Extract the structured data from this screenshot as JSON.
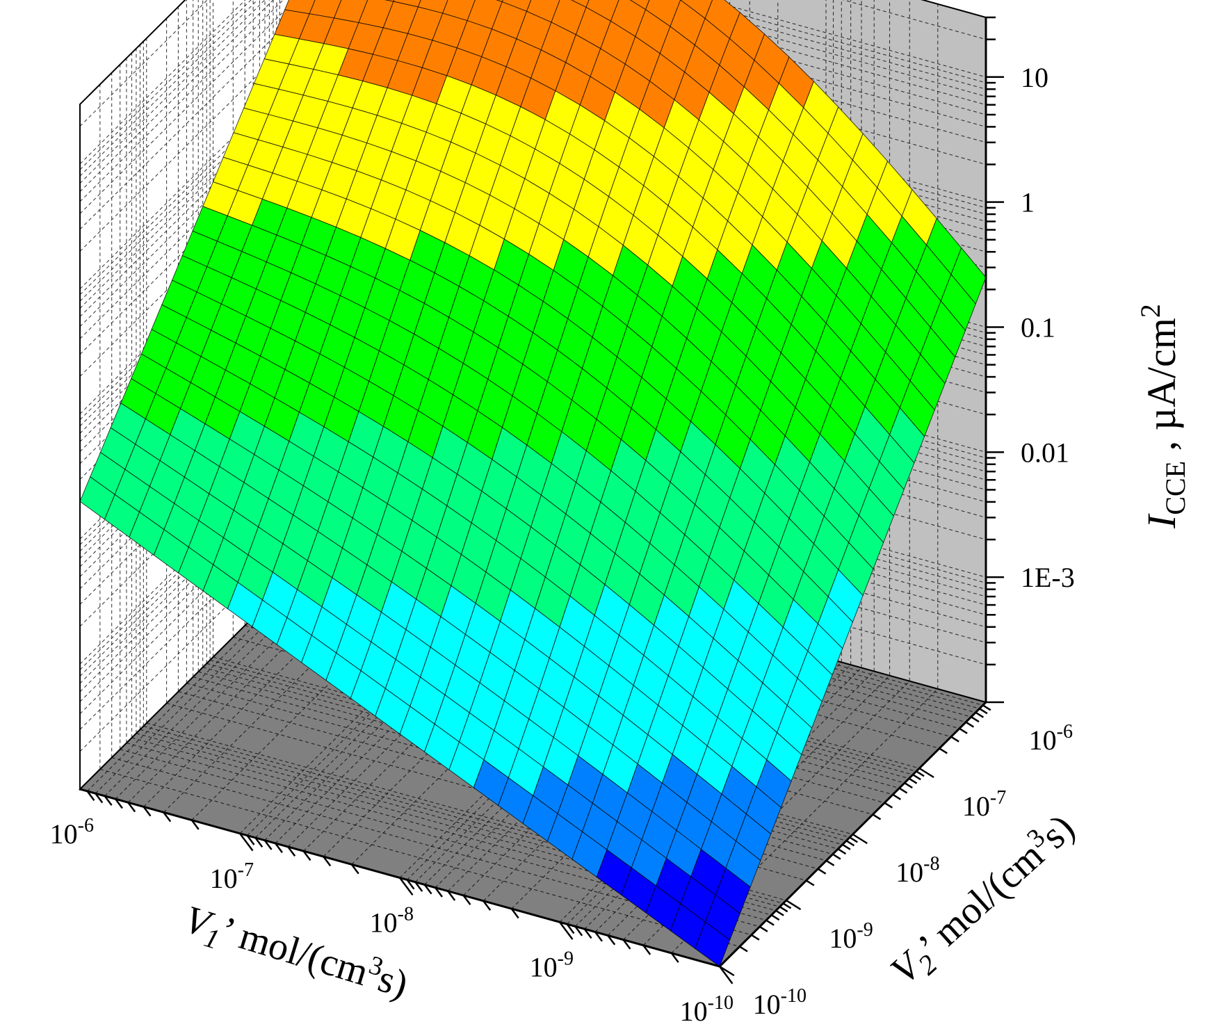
{
  "chart_data": {
    "type": "surface3d",
    "x_axis": {
      "label_symbol": "V",
      "label_sub": "1",
      "label_rest": "’  mol/(cm",
      "label_sup": "3",
      "label_end": "s)",
      "scale": "log",
      "range": [
        1e-10,
        1e-06
      ],
      "tick_values": [
        1e-06,
        1e-07,
        1e-08,
        1e-09,
        1e-10
      ],
      "tick_bases": [
        "10",
        "10",
        "10",
        "10",
        "10"
      ],
      "tick_exps": [
        "-6",
        "-7",
        "-8",
        "-9",
        "-10"
      ]
    },
    "y_axis": {
      "label_symbol": "V",
      "label_sub": "2",
      "label_rest": "’  mol/(cm",
      "label_sup": "3",
      "label_end": "s)",
      "scale": "log",
      "range": [
        1e-10,
        1e-06
      ],
      "tick_values": [
        1e-10,
        1e-09,
        1e-08,
        1e-07,
        1e-06
      ],
      "tick_bases": [
        "10",
        "10",
        "10",
        "10",
        "10"
      ],
      "tick_exps": [
        "-10",
        "-9",
        "-8",
        "-7",
        "-6"
      ]
    },
    "z_axis": {
      "label_symbol": "I",
      "label_sub": "CCE",
      "label_rest": " , µA/cm",
      "label_sup": "2",
      "scale": "log",
      "range": [
        0.0001,
        30
      ],
      "tick_values": [
        0.001,
        0.01,
        0.1,
        1,
        10
      ],
      "tick_labels": [
        "1E-3",
        "0.01",
        "0.1",
        "1",
        "10"
      ]
    },
    "grid": true,
    "colormap_levels": [
      {
        "z_min": 0.0001,
        "z_max": 0.0003,
        "color": "#0000ff"
      },
      {
        "z_min": 0.0003,
        "z_max": 0.0009,
        "color": "#0080ff"
      },
      {
        "z_min": 0.0009,
        "z_max": 0.007,
        "color": "#00ffff"
      },
      {
        "z_min": 0.007,
        "z_max": 0.05,
        "color": "#00ff80"
      },
      {
        "z_min": 0.05,
        "z_max": 0.5,
        "color": "#00ff00"
      },
      {
        "z_min": 0.5,
        "z_max": 3,
        "color": "#ffff00"
      },
      {
        "z_min": 3,
        "z_max": 15,
        "color": "#ff8000"
      },
      {
        "z_min": 15,
        "z_max": 40,
        "color": "#ff0000"
      }
    ],
    "surface_corners": [
      {
        "V1": 1e-06,
        "V2": 1e-06,
        "I": 20
      },
      {
        "V1": 1e-10,
        "V2": 1e-06,
        "I": 0.25
      },
      {
        "V1": 1e-06,
        "V2": 1e-10,
        "I": 0.02
      },
      {
        "V1": 1e-10,
        "V2": 1e-10,
        "I": 0.0001
      }
    ]
  }
}
